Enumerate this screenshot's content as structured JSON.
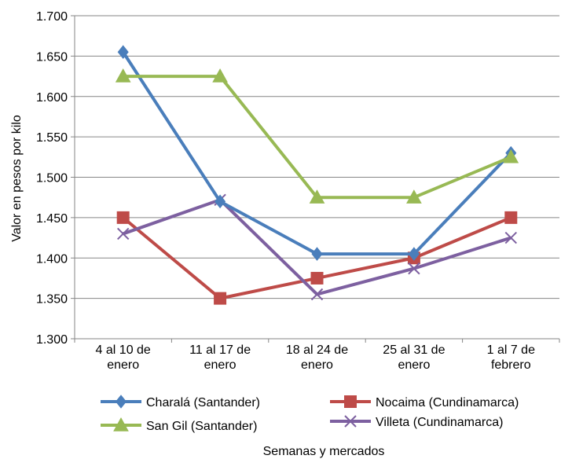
{
  "chart_data": {
    "type": "line",
    "title": "",
    "xlabel": "Semanas y mercados",
    "ylabel": "Valor en pesos por kilo",
    "ylim": [
      1300,
      1700
    ],
    "ytick_step": 50,
    "ytick_labels": [
      "1.300",
      "1.350",
      "1.400",
      "1.450",
      "1.500",
      "1.550",
      "1.600",
      "1.650",
      "1.700"
    ],
    "grid": true,
    "legend_position": "bottom",
    "categories": [
      [
        "4 al 10 de",
        "enero"
      ],
      [
        "11 al 17 de",
        "enero"
      ],
      [
        "18 al 24 de",
        "enero"
      ],
      [
        "25 al 31 de",
        "enero"
      ],
      [
        "1 al 7 de",
        "febrero"
      ]
    ],
    "series": [
      {
        "name": "Charalá (Santander)",
        "values": [
          1655,
          1470,
          1405,
          1405,
          1530
        ],
        "color": "#4a7ebb",
        "marker": "diamond"
      },
      {
        "name": "Nocaima (Cundinamarca)",
        "values": [
          1450,
          1350,
          1375,
          1400,
          1450
        ],
        "color": "#be4b48",
        "marker": "square"
      },
      {
        "name": "San Gil (Santander)",
        "values": [
          1625,
          1625,
          1475,
          1475,
          1525
        ],
        "color": "#98b954",
        "marker": "triangle"
      },
      {
        "name": "Villeta (Cundinamarca)",
        "values": [
          1430,
          1472,
          1355,
          1387,
          1425
        ],
        "color": "#7d60a0",
        "marker": "x"
      }
    ],
    "legend_order": [
      0,
      1,
      2,
      3
    ]
  }
}
